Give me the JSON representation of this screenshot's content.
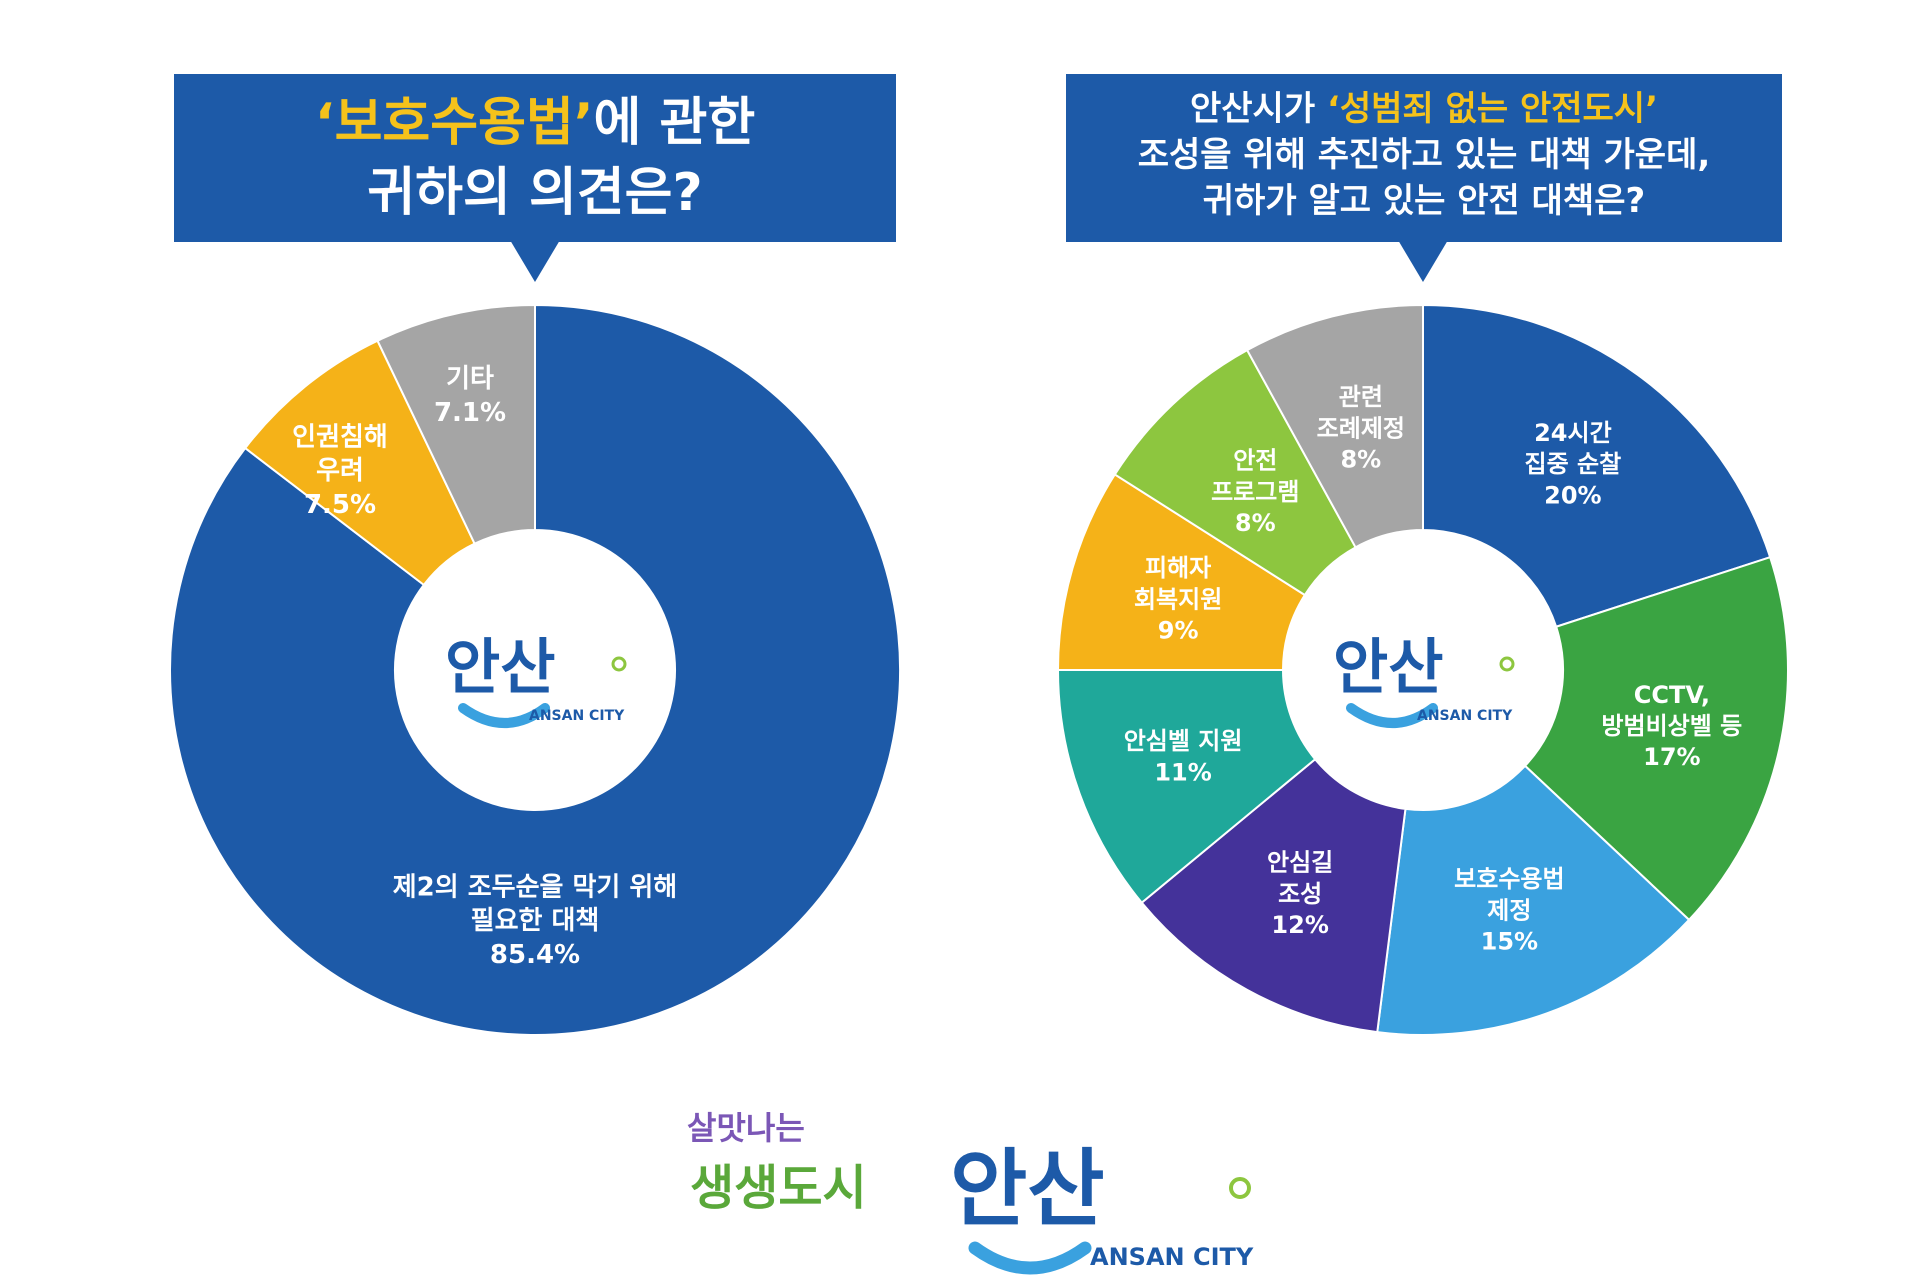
{
  "questions": {
    "q1": {
      "highlight": "‘보호수용법’",
      "line1_rest": "에 관한",
      "line2": "귀하의 의견은?"
    },
    "q2": {
      "line1_pre": "안산시가 ",
      "highlight": "‘성범죄 없는 안전도시’",
      "line2": "조성을 위해 추진하고 있는 대책 가운데,",
      "line3": "귀하가 알고 있는 안전 대책은?"
    }
  },
  "logo": {
    "text": "안산",
    "sub": "ANSAN CITY"
  },
  "footer": {
    "slogan_top": "살맛나는",
    "slogan_bottom": "생생도시",
    "logo_text": "안산",
    "logo_sub": "ANSAN CITY"
  },
  "colors": {
    "blue": "#1d5aa8",
    "yellow": "#f5b218",
    "gray": "#a5a5a5",
    "green": "#3aa442",
    "lightblue": "#3aa1df",
    "purple": "#44329a",
    "teal": "#1fa89a",
    "lime": "#8dc63f",
    "highlight": "#f5c21b"
  },
  "chart_data": [
    {
      "type": "pie",
      "title": "‘보호수용법’에 관한 귀하의 의견은?",
      "slices": [
        {
          "label": [
            "제2의 조두순을 막기 위해",
            "필요한 대책"
          ],
          "value": 85.4,
          "value_text": "85.4%",
          "color": "#1d5aa8"
        },
        {
          "label": [
            "인권침해",
            "우려"
          ],
          "value": 7.5,
          "value_text": "7.5%",
          "color": "#f5b218"
        },
        {
          "label": [
            "기타"
          ],
          "value": 7.1,
          "value_text": "7.1%",
          "color": "#a5a5a5"
        }
      ]
    },
    {
      "type": "pie",
      "title": "안산시가 ‘성범죄 없는 안전도시’ 조성을 위해 추진하고 있는 대책 가운데, 귀하가 알고 있는 안전 대책은?",
      "slices": [
        {
          "label": [
            "24시간",
            "집중 순찰"
          ],
          "value": 20,
          "value_text": "20%",
          "color": "#1d5aa8"
        },
        {
          "label": [
            "CCTV,",
            "방범비상벨 등"
          ],
          "value": 17,
          "value_text": "17%",
          "color": "#3aa442"
        },
        {
          "label": [
            "보호수용법",
            "제정"
          ],
          "value": 15,
          "value_text": "15%",
          "color": "#3aa1df"
        },
        {
          "label": [
            "안심길",
            "조성"
          ],
          "value": 12,
          "value_text": "12%",
          "color": "#44329a"
        },
        {
          "label": [
            "안심벨 지원"
          ],
          "value": 11,
          "value_text": "11%",
          "color": "#1fa89a"
        },
        {
          "label": [
            "피해자",
            "회복지원"
          ],
          "value": 9,
          "value_text": "9%",
          "color": "#f5b218"
        },
        {
          "label": [
            "안전",
            "프로그램"
          ],
          "value": 8,
          "value_text": "8%",
          "color": "#8dc63f"
        },
        {
          "label": [
            "관련",
            "조례제정"
          ],
          "value": 8,
          "value_text": "8%",
          "color": "#a5a5a5"
        }
      ]
    }
  ]
}
